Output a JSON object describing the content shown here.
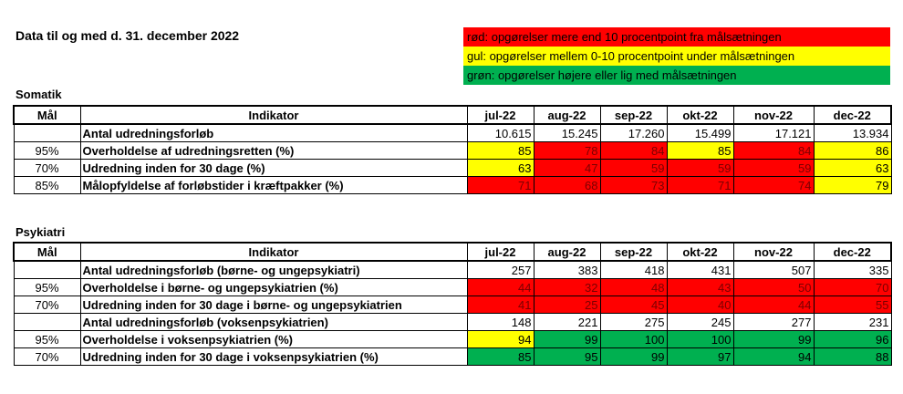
{
  "title": "Data til og med d. 31. december 2022",
  "legend": [
    {
      "text": "rød: opgørelser mere end 10 procentpoint fra målsætningen",
      "color": "#ff0000"
    },
    {
      "text": "gul: opgørelser mellem 0-10 procentpoint under målsætningen",
      "color": "#ffff00"
    },
    {
      "text": "grøn: opgørelser højere eller lig med målsætningen",
      "color": "#00b050"
    }
  ],
  "columns": {
    "goal": "Mål",
    "indicator": "Indikator",
    "months": [
      "jul-22",
      "aug-22",
      "sep-22",
      "okt-22",
      "nov-22",
      "dec-22"
    ]
  },
  "sections": [
    {
      "title": "Somatik",
      "rows": [
        {
          "goal": "",
          "indicator": "Antal udredningsforløb",
          "values": [
            "10.615",
            "15.245",
            "17.260",
            "15.499",
            "17.121",
            "13.934"
          ],
          "status": [
            "white",
            "white",
            "white",
            "white",
            "white",
            "white"
          ]
        },
        {
          "goal": "95%",
          "indicator": "Overholdelse af udredningsretten (%)",
          "values": [
            "85",
            "78",
            "84",
            "85",
            "84",
            "86"
          ],
          "status": [
            "yellow",
            "red",
            "red",
            "yellow",
            "red",
            "yellow"
          ]
        },
        {
          "goal": "70%",
          "indicator": "Udredning inden for 30 dage (%)",
          "values": [
            "63",
            "47",
            "59",
            "59",
            "59",
            "63"
          ],
          "status": [
            "yellow",
            "red",
            "red",
            "red",
            "red",
            "yellow"
          ]
        },
        {
          "goal": "85%",
          "indicator": "Målopfyldelse af forløbstider i kræftpakker (%)",
          "values": [
            "71",
            "68",
            "73",
            "71",
            "74",
            "79"
          ],
          "status": [
            "red",
            "red",
            "red",
            "red",
            "red",
            "yellow"
          ]
        }
      ]
    },
    {
      "title": "Psykiatri",
      "rows": [
        {
          "goal": "",
          "indicator": "Antal udredningsforløb (børne- og ungepsykiatri)",
          "values": [
            "257",
            "383",
            "418",
            "431",
            "507",
            "335"
          ],
          "status": [
            "white",
            "white",
            "white",
            "white",
            "white",
            "white"
          ]
        },
        {
          "goal": "95%",
          "indicator": "Overholdelse i børne- og ungepsykiatrien (%)",
          "values": [
            "44",
            "32",
            "48",
            "43",
            "50",
            "70"
          ],
          "status": [
            "red",
            "red",
            "red",
            "red",
            "red",
            "red"
          ]
        },
        {
          "goal": "70%",
          "indicator": "Udredning inden for 30 dage i børne- og ungepsykiatrien",
          "values": [
            "41",
            "25",
            "45",
            "40",
            "44",
            "55"
          ],
          "status": [
            "red",
            "red",
            "red",
            "red",
            "red",
            "red"
          ]
        },
        {
          "goal": "",
          "indicator": "Antal udredningsforløb (voksenpsykiatrien)",
          "values": [
            "148",
            "221",
            "275",
            "245",
            "277",
            "231"
          ],
          "status": [
            "white",
            "white",
            "white",
            "white",
            "white",
            "white"
          ]
        },
        {
          "goal": "95%",
          "indicator": "Overholdelse i voksenpsykiatrien (%)",
          "values": [
            "94",
            "99",
            "100",
            "100",
            "99",
            "96"
          ],
          "status": [
            "yellow",
            "green",
            "green",
            "green",
            "green",
            "green"
          ]
        },
        {
          "goal": "70%",
          "indicator": "Udredning inden for 30 dage i voksenpsykiatrien (%)",
          "values": [
            "85",
            "95",
            "99",
            "97",
            "94",
            "88"
          ],
          "status": [
            "green",
            "green",
            "green",
            "green",
            "green",
            "green"
          ]
        }
      ]
    }
  ]
}
